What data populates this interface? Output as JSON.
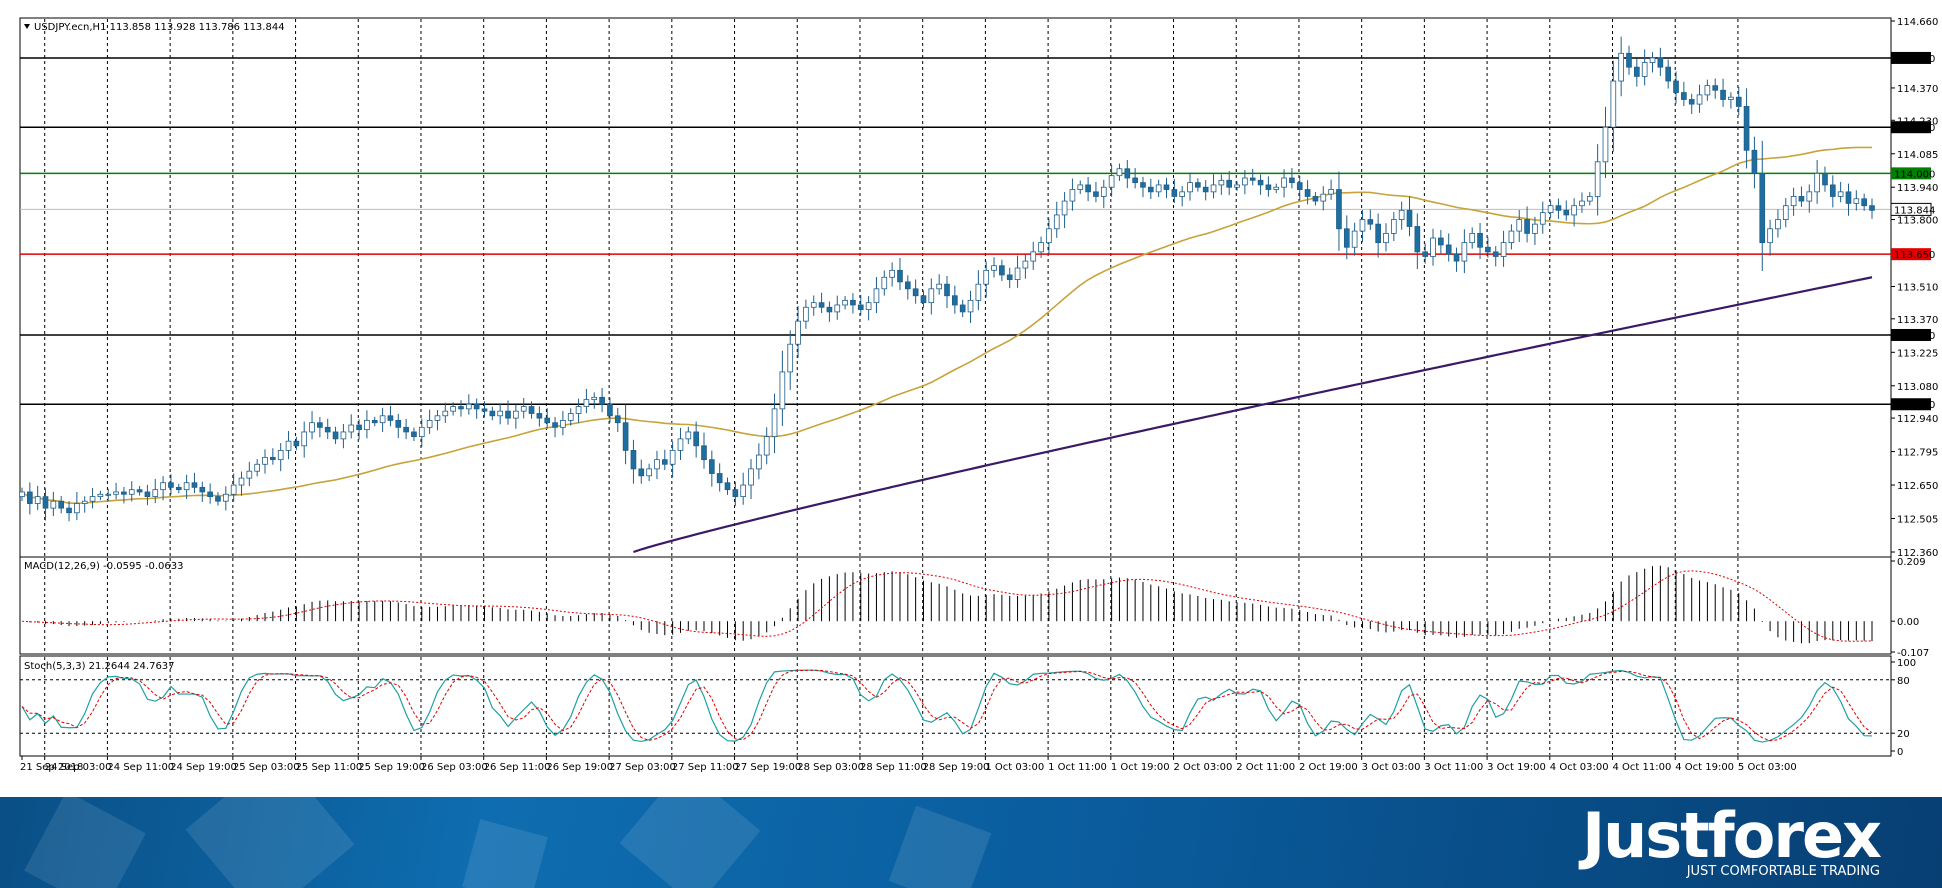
{
  "chart_data": [
    {
      "type": "candlestick",
      "symbol_header": "USDJPY.ecn,H1  113.858 113.928 113.786 113.844",
      "timeframe": "H1",
      "ohlc_last": {
        "open": 113.858,
        "high": 113.928,
        "low": 113.786,
        "close": 113.844
      },
      "ylim": [
        112.36,
        114.66
      ],
      "y_ticks": [
        "114.660",
        "114.370",
        "114.230",
        "114.085",
        "113.940",
        "113.800",
        "113.510",
        "113.370",
        "113.225",
        "113.080",
        "112.940",
        "112.795",
        "112.650",
        "112.505",
        "112.360"
      ],
      "x_labels": [
        "21 Sep 2018",
        "24 Sep 03:00",
        "24 Sep 11:00",
        "24 Sep 19:00",
        "25 Sep 03:00",
        "25 Sep 11:00",
        "25 Sep 19:00",
        "26 Sep 03:00",
        "26 Sep 11:00",
        "26 Sep 19:00",
        "27 Sep 03:00",
        "27 Sep 11:00",
        "27 Sep 19:00",
        "28 Sep 03:00",
        "28 Sep 11:00",
        "28 Sep 19:00",
        "1 Oct 03:00",
        "1 Oct 11:00",
        "1 Oct 19:00",
        "2 Oct 03:00",
        "2 Oct 11:00",
        "2 Oct 19:00",
        "3 Oct 03:00",
        "3 Oct 11:00",
        "3 Oct 19:00",
        "4 Oct 03:00",
        "4 Oct 11:00",
        "4 Oct 19:00",
        "5 Oct 03:00"
      ],
      "horizontal_levels": [
        {
          "value": 114.5,
          "label": "114.500",
          "color": "#000000"
        },
        {
          "value": 114.2,
          "label": "114.200",
          "color": "#000000"
        },
        {
          "value": 114.0,
          "label": "114.000",
          "color": "#008000"
        },
        {
          "value": 113.65,
          "label": "113.650",
          "color": "#e00000"
        },
        {
          "value": 113.3,
          "label": "113.300",
          "color": "#000000"
        },
        {
          "value": 113.0,
          "label": "113.000",
          "color": "#000000"
        }
      ],
      "current_price": {
        "value": 113.844,
        "label": "113.844"
      },
      "closes": [
        112.62,
        112.57,
        112.6,
        112.55,
        112.58,
        112.55,
        112.53,
        112.57,
        112.58,
        112.6,
        112.61,
        112.61,
        112.62,
        112.61,
        112.63,
        112.62,
        112.6,
        112.63,
        112.66,
        112.64,
        112.63,
        112.66,
        112.64,
        112.62,
        112.6,
        112.58,
        112.61,
        112.65,
        112.68,
        112.71,
        112.74,
        112.77,
        112.76,
        112.8,
        112.84,
        112.82,
        112.88,
        112.92,
        112.9,
        112.88,
        112.85,
        112.88,
        112.91,
        112.89,
        112.93,
        112.92,
        112.95,
        112.93,
        112.9,
        112.88,
        112.86,
        112.9,
        112.93,
        112.95,
        112.97,
        112.99,
        112.98,
        113.0,
        112.98,
        112.97,
        112.95,
        112.97,
        112.94,
        112.97,
        112.99,
        112.96,
        112.94,
        112.92,
        112.9,
        112.93,
        112.96,
        112.99,
        113.02,
        113.03,
        113.0,
        112.95,
        112.92,
        112.8,
        112.72,
        112.69,
        112.72,
        112.76,
        112.74,
        112.8,
        112.85,
        112.88,
        112.82,
        112.76,
        112.7,
        112.66,
        112.63,
        112.6,
        112.65,
        112.72,
        112.78,
        112.86,
        112.98,
        113.14,
        113.26,
        113.36,
        113.42,
        113.44,
        113.42,
        113.4,
        113.43,
        113.45,
        113.43,
        113.41,
        113.44,
        113.5,
        113.55,
        113.58,
        113.53,
        113.5,
        113.47,
        113.44,
        113.5,
        113.52,
        113.47,
        113.43,
        113.4,
        113.45,
        113.52,
        113.58,
        113.6,
        113.56,
        113.54,
        113.59,
        113.62,
        113.66,
        113.7,
        113.76,
        113.82,
        113.88,
        113.93,
        113.95,
        113.92,
        113.9,
        113.94,
        113.99,
        114.02,
        113.98,
        113.96,
        113.94,
        113.92,
        113.95,
        113.93,
        113.9,
        113.92,
        113.96,
        113.94,
        113.92,
        113.95,
        113.97,
        113.94,
        113.95,
        113.98,
        113.97,
        113.95,
        113.93,
        113.94,
        113.98,
        113.96,
        113.93,
        113.9,
        113.88,
        113.91,
        113.93,
        113.76,
        113.68,
        113.75,
        113.8,
        113.78,
        113.7,
        113.74,
        113.8,
        113.84,
        113.77,
        113.66,
        113.64,
        113.72,
        113.69,
        113.65,
        113.62,
        113.7,
        113.74,
        113.68,
        113.66,
        113.64,
        113.7,
        113.75,
        113.8,
        113.74,
        113.78,
        113.83,
        113.86,
        113.84,
        113.82,
        113.86,
        113.88,
        113.9,
        114.05,
        114.2,
        114.4,
        114.52,
        114.46,
        114.42,
        114.48,
        114.5,
        114.46,
        114.4,
        114.35,
        114.32,
        114.3,
        114.34,
        114.38,
        114.36,
        114.32,
        114.33,
        114.29,
        114.1,
        114.0,
        113.7,
        113.76,
        113.8,
        113.86,
        113.9,
        113.88,
        113.92,
        114.0,
        113.95,
        113.9,
        113.92,
        113.87,
        113.89,
        113.86,
        113.84
      ],
      "indicators": [
        {
          "name": "MA50",
          "color": "#c8a23a"
        },
        {
          "name": "MA200",
          "color": "#3a1a66"
        }
      ]
    },
    {
      "type": "histogram+line",
      "header": "MACD(12,26,9) -0.0595 -0.0633",
      "y_ticks": [
        "0.209",
        "0.00",
        "-0.107"
      ],
      "ylim": [
        -0.107,
        0.209
      ],
      "signal_color": "#e00000",
      "histogram_color": "#000000"
    },
    {
      "type": "line",
      "header": "Stoch(5,3,3) 21.2644 24.7637",
      "y_ticks": [
        "100",
        "80",
        "20",
        "0"
      ],
      "ylim": [
        0,
        100
      ],
      "levels": [
        20,
        80
      ],
      "main_color": "#20a0a0",
      "signal_color": "#e00000"
    }
  ],
  "brand": {
    "name": "Justforex",
    "tagline": "JUST COMFORTABLE TRADING"
  },
  "colors": {
    "bull_candle": "#ffffff",
    "bear_candle": "#1f6ea0",
    "banner": "#0a5d9e"
  }
}
